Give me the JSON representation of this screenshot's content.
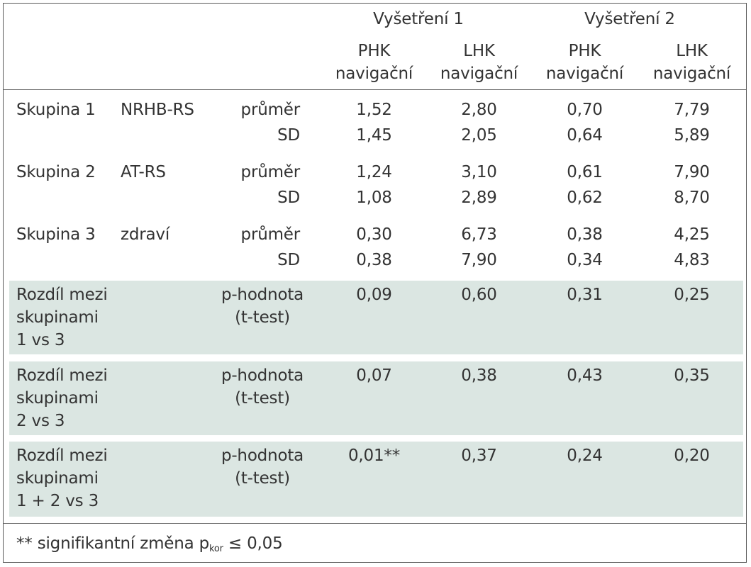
{
  "header": {
    "groups": [
      "Vyšetření 1",
      "Vyšetření 2"
    ],
    "columns": [
      {
        "line1": "PHK",
        "line2": "navigační"
      },
      {
        "line1": "LHK",
        "line2": "navigační"
      },
      {
        "line1": "PHK",
        "line2": "navigační"
      },
      {
        "line1": "LHK",
        "line2": "navigační"
      }
    ]
  },
  "groups": [
    {
      "name": "Skupina 1",
      "subset": "NRHB-RS",
      "rows": [
        {
          "stat": "průměr",
          "values": [
            "1,52",
            "2,80",
            "0,70",
            "7,79"
          ]
        },
        {
          "stat": "SD",
          "values": [
            "1,45",
            "2,05",
            "0,64",
            "5,89"
          ]
        }
      ]
    },
    {
      "name": "Skupina 2",
      "subset": "AT-RS",
      "rows": [
        {
          "stat": "průměr",
          "values": [
            "1,24",
            "3,10",
            "0,61",
            "7,90"
          ]
        },
        {
          "stat": "SD",
          "values": [
            "1,08",
            "2,89",
            "0,62",
            "8,70"
          ]
        }
      ]
    },
    {
      "name": "Skupina 3",
      "subset": "zdraví",
      "rows": [
        {
          "stat": "průměr",
          "values": [
            "0,30",
            "6,73",
            "0,38",
            "4,25"
          ]
        },
        {
          "stat": "SD",
          "values": [
            "0,38",
            "7,90",
            "0,34",
            "4,83"
          ]
        }
      ]
    }
  ],
  "comparisons": [
    {
      "label": [
        "Rozdíl mezi",
        "skupinami",
        "1 vs 3"
      ],
      "stat": [
        "p-hodnota",
        "(t-test)"
      ],
      "values": [
        "0,09",
        "0,60",
        "0,31",
        "0,25"
      ]
    },
    {
      "label": [
        "Rozdíl mezi",
        "skupinami",
        "2 vs 3"
      ],
      "stat": [
        "p-hodnota",
        "(t-test)"
      ],
      "values": [
        "0,07",
        "0,38",
        "0,43",
        "0,35"
      ]
    },
    {
      "label": [
        "Rozdíl mezi",
        "skupinami",
        "1 + 2 vs 3"
      ],
      "stat": [
        "p-hodnota",
        "(t-test)"
      ],
      "values": [
        "0,01**",
        "0,37",
        "0,24",
        "0,20"
      ]
    }
  ],
  "footnote": {
    "prefix": "** signifikantní změna p",
    "subscript": "kor",
    "suffix": " ≤ 0,05"
  },
  "colors": {
    "band": "#dbe6e2",
    "text": "#333333",
    "rule": "#6a6a6a"
  }
}
